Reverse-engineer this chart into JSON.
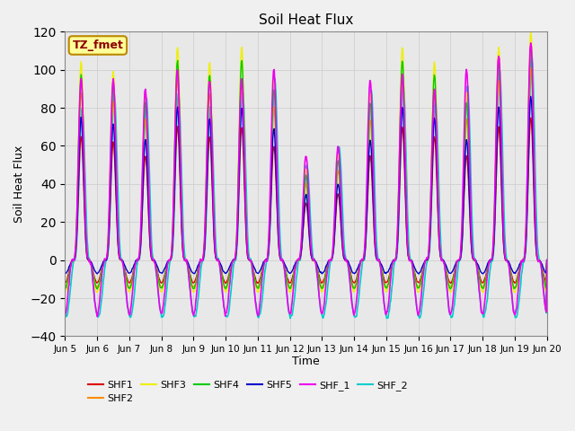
{
  "title": "Soil Heat Flux",
  "xlabel": "Time",
  "ylabel": "Soil Heat Flux",
  "ylim": [
    -40,
    120
  ],
  "series": {
    "SHF1": {
      "color": "#dd0000",
      "lw": 1.0
    },
    "SHF2": {
      "color": "#ff8c00",
      "lw": 1.0
    },
    "SHF3": {
      "color": "#eeee00",
      "lw": 1.0
    },
    "SHF4": {
      "color": "#00cc00",
      "lw": 1.0
    },
    "SHF5": {
      "color": "#0000cc",
      "lw": 1.0
    },
    "SHF_1": {
      "color": "#ee00ee",
      "lw": 1.2
    },
    "SHF_2": {
      "color": "#00cccc",
      "lw": 1.2
    }
  },
  "xtick_labels": [
    "Jun 5",
    "Jun 6",
    "Jun 7",
    "Jun 8",
    "Jun 9",
    "Jun 10",
    "Jun 11",
    "Jun 12",
    "Jun 13",
    "Jun 14",
    "Jun 15",
    "Jun 16",
    "Jun 17",
    "Jun 18",
    "Jun 19",
    "Jun 20"
  ],
  "grid_color": "#d0d0d0",
  "bg_color": "#e8e8e8",
  "annotation_box_color": "#ffff99",
  "annotation_box_edgecolor": "#bb8800",
  "annotation_text": "TZ_fmet",
  "annotation_text_color": "#8b0000",
  "n_days": 15,
  "pts_per_day": 48,
  "day_peak_amps": [
    65,
    62,
    55,
    70,
    65,
    70,
    60,
    30,
    35,
    55,
    70,
    65,
    55,
    70,
    75
  ],
  "shf1_night": -12,
  "shf2_night": -14,
  "shf3_night": -15,
  "shf4_night": -16,
  "shf5_night": -11,
  "shf1_scale": 1.0,
  "shf2_scale": 1.35,
  "shf3_scale": 1.55,
  "shf4_scale": 1.35,
  "shf5_scale": 1.15,
  "shf1_scale2": 1.55,
  "shf2_1_scale": 1.55,
  "shf2_2_night": -28
}
